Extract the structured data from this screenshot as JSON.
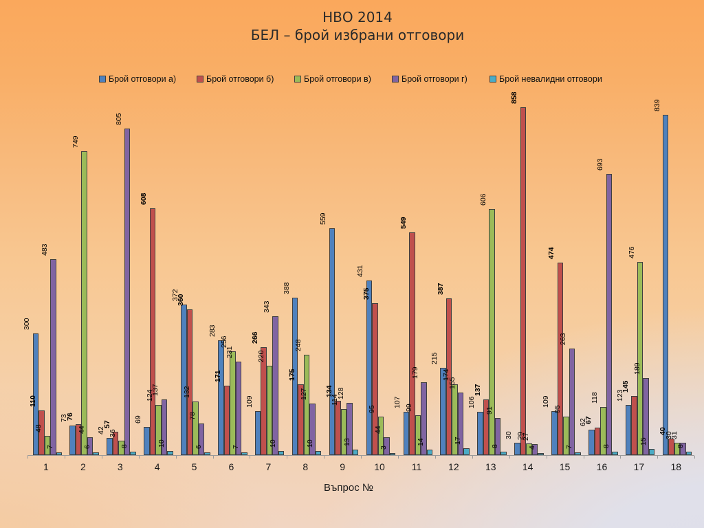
{
  "title": {
    "line1": "НВО 2014",
    "line2": "БЕЛ – брой избрани отговори"
  },
  "chart_data": {
    "type": "bar",
    "title": "НВО 2014 БЕЛ – брой избрани отговори",
    "xlabel": "Въпрос №",
    "ylabel": "",
    "ylim": [
      0,
      900
    ],
    "grid": false,
    "legend_position": "top",
    "value_labels": "rotated 90deg above bars",
    "categories": [
      "1",
      "2",
      "3",
      "4",
      "5",
      "6",
      "7",
      "8",
      "9",
      "10",
      "11",
      "12",
      "13",
      "14",
      "15",
      "16",
      "17",
      "18"
    ],
    "series": [
      {
        "name": "Брой отговори а)",
        "color": "#4F81BD",
        "bold_labels": false,
        "values": [
          300,
          73,
          42,
          69,
          372,
          283,
          109,
          388,
          559,
          431,
          107,
          215,
          106,
          30,
          109,
          62,
          123,
          839
        ]
      },
      {
        "name": "Брой отговори б)",
        "color": "#C0504D",
        "bold_labels": true,
        "values": [
          110,
          76,
          57,
          608,
          360,
          171,
          266,
          175,
          134,
          375,
          549,
          387,
          137,
          858,
          474,
          67,
          145,
          40
        ]
      },
      {
        "name": "Брой отговори в)",
        "color": "#9BBB59",
        "bold_labels": false,
        "values": [
          48,
          749,
          36,
          124,
          132,
          256,
          220,
          248,
          114,
          95,
          99,
          174,
          606,
          29,
          95,
          118,
          476,
          30
        ]
      },
      {
        "name": "Брой отговори г)",
        "color": "#8064A2",
        "bold_labels": false,
        "values": [
          483,
          44,
          805,
          137,
          78,
          231,
          343,
          127,
          128,
          44,
          179,
          155,
          91,
          27,
          263,
          693,
          189,
          31
        ]
      },
      {
        "name": "Брой невалидни отговори",
        "color": "#4BACC6",
        "bold_labels": false,
        "values": [
          7,
          6,
          8,
          10,
          6,
          7,
          10,
          10,
          13,
          3,
          14,
          17,
          8,
          4,
          7,
          8,
          15,
          8
        ]
      }
    ]
  }
}
